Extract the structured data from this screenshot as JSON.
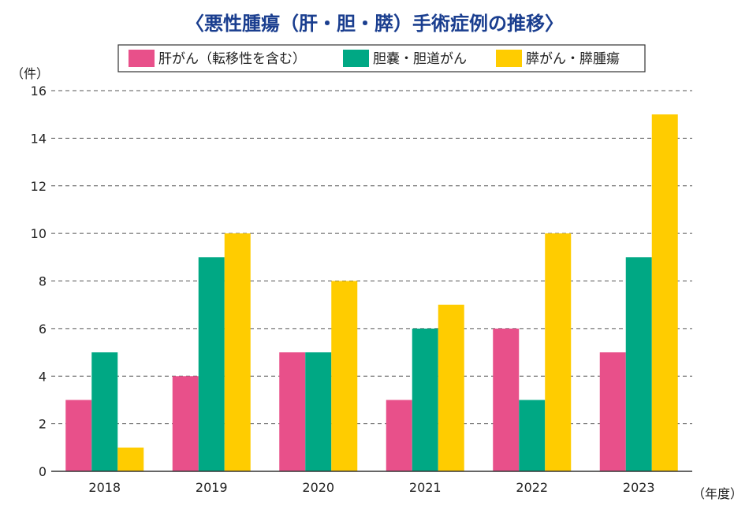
{
  "chart_data": {
    "type": "bar",
    "title": "〈悪性腫瘍（肝・胆・膵）手術症例の推移〉",
    "ylabel": "（件）",
    "xlabel": "（年度）",
    "categories": [
      "2018",
      "2019",
      "2020",
      "2021",
      "2022",
      "2023"
    ],
    "series": [
      {
        "name": "肝がん（転移性を含む）",
        "color": "#e8508a",
        "values": [
          3,
          4,
          5,
          3,
          6,
          5
        ]
      },
      {
        "name": "胆嚢・胆道がん",
        "color": "#00a884",
        "values": [
          5,
          9,
          5,
          6,
          3,
          9
        ]
      },
      {
        "name": "膵がん・膵腫瘍",
        "color": "#ffcc00",
        "values": [
          1,
          10,
          8,
          7,
          10,
          15
        ]
      }
    ],
    "ylim": [
      0,
      16
    ],
    "yticks": [
      "0",
      "2",
      "4",
      "6",
      "8",
      "10",
      "12",
      "14",
      "16"
    ],
    "grid": true,
    "legend_position": "top"
  }
}
